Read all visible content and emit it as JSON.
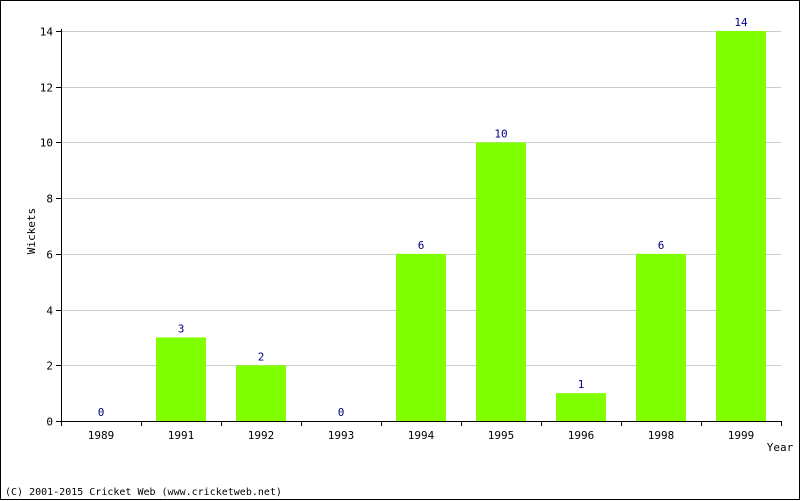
{
  "chart_data": {
    "type": "bar",
    "title": "",
    "xlabel": "Year",
    "ylabel": "Wickets",
    "categories": [
      "1989",
      "1991",
      "1992",
      "1993",
      "1994",
      "1995",
      "1996",
      "1998",
      "1999"
    ],
    "values": [
      0,
      3,
      2,
      0,
      6,
      10,
      1,
      6,
      14
    ],
    "ylim": [
      0,
      14
    ],
    "yticks": [
      0,
      2,
      4,
      6,
      8,
      10,
      12,
      14
    ],
    "grid": true,
    "legend": "none",
    "colors": {
      "bar": "#80ff00",
      "data_label": "#000080",
      "grid": "#cccccc",
      "axis": "#000000"
    }
  },
  "footer": {
    "copyright": "(C) 2001-2015 Cricket Web (www.cricketweb.net)"
  }
}
